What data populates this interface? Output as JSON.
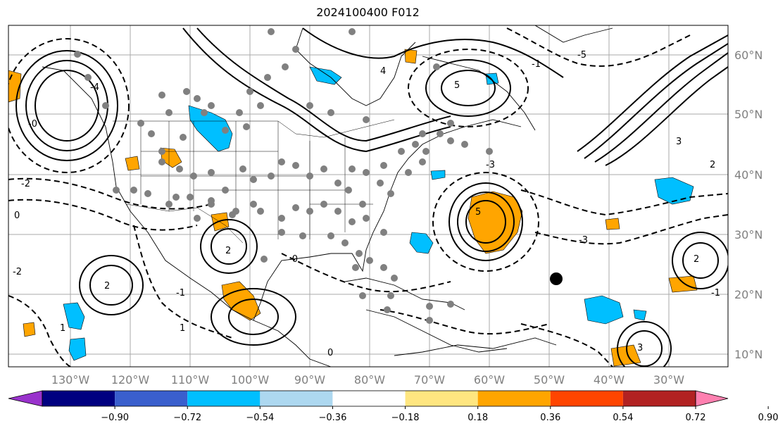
{
  "title": "2024100400 F012",
  "lon_ticks": [
    "130°W",
    "120°W",
    "110°W",
    "100°W",
    "90°W",
    "80°W",
    "70°W",
    "60°W",
    "50°W",
    "40°W",
    "30°W"
  ],
  "lat_ticks": [
    "60°N",
    "50°N",
    "40°N",
    "30°N",
    "20°N",
    "10°N"
  ],
  "colorbar": {
    "colors": [
      "#9932cc",
      "#000080",
      "#3a5fcd",
      "#00bfff",
      "#add8f0",
      "#ffffff",
      "#ffe680",
      "#ffa500",
      "#ff4500",
      "#b22222",
      "#ff80b0"
    ],
    "ticks": [
      "−0.90",
      "−0.72",
      "−0.54",
      "−0.36",
      "−0.18",
      "0.18",
      "0.36",
      "0.54",
      "0.72",
      "0.90"
    ]
  },
  "contour_labels": [
    "5",
    "5",
    "2",
    "2",
    "2",
    "3",
    "3",
    "1",
    "1",
    "0",
    "-0",
    "-2",
    "-3",
    "-3",
    "-5",
    "-2",
    "-0",
    "-1",
    "4",
    "-4",
    "0",
    "-1",
    "-1",
    "2"
  ],
  "marker_color": "#000000",
  "station_color": "#808080"
}
